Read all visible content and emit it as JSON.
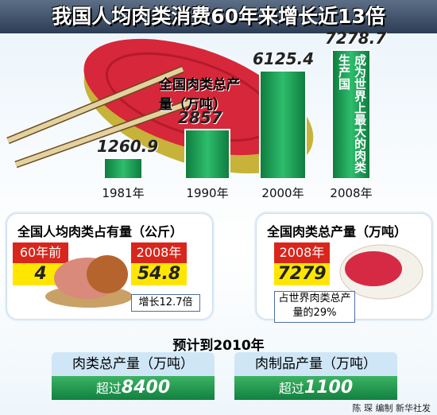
{
  "title": "我国人均肉类消费60年来增长近13倍",
  "chart_data": {
    "type": "bar",
    "title": "全国肉类总产量（万吨）",
    "categories": [
      "1981年",
      "1990年",
      "2000年",
      "2008年"
    ],
    "values": [
      1260.9,
      2857,
      6125.4,
      7278.7
    ],
    "color": "#1f9a55",
    "annotation": "成为世界上最大的肉类生产国"
  },
  "per_capita": {
    "title": "全国人均肉类占有量（公斤）",
    "labels": [
      "60年前",
      "2008年"
    ],
    "values": [
      4,
      54.8
    ],
    "note": "增长12.7倍"
  },
  "total": {
    "title": "全国肉类总产量（万吨）",
    "label": "2008年",
    "value": 7279,
    "note": "占世界肉类总产量的29%"
  },
  "forecast": {
    "title": "预计到2010年",
    "items": [
      {
        "label": "肉类总产量（万吨）",
        "prefix": "超过",
        "value": 8400
      },
      {
        "label": "肉制品产量（万吨）",
        "prefix": "超过",
        "value": 1100
      }
    ]
  },
  "credit": "陈 琛 编制 新华社发"
}
